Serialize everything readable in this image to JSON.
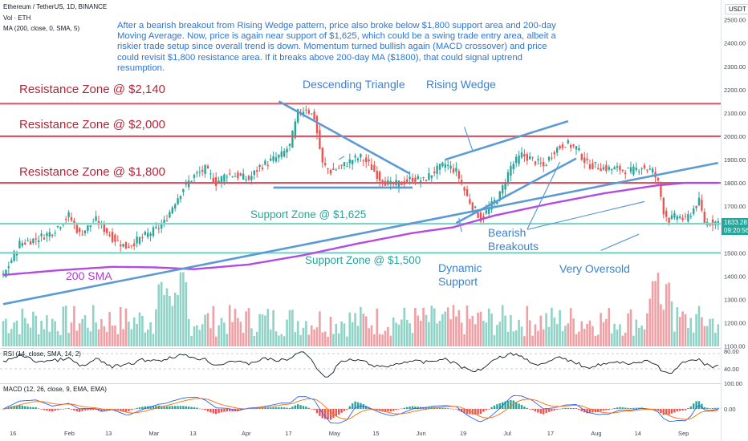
{
  "header": {
    "title": "Ethereum / TetherUS, 1D, BINANCE",
    "volume_label": "Vol · ETH",
    "ma_label": "MA (200, close, 0, SMA, 5)"
  },
  "commentary": "After a bearish breakout from Rising Wedge pattern, price also broke below $1,800 support area and 200-day Moving Average. Now, price is again near support of $1,625, which could be a swing trade entry area, albeit a riskier trade setup since overall trend is down. Momentum turned bullish again (MACD crossover) and price could revisit $1,800 resistance area. If it breaks above 200-day MA ($1800), that could signal uptrend resumption.",
  "annotations": {
    "res_2140": "Resistance Zone @ $2,140",
    "res_2000": "Resistance Zone @ $2,000",
    "res_1800": "Resistance Zone @ $1,800",
    "sup_1625": "Support Zone @ $1,625",
    "sup_1500": "Support Zone @ $1,500",
    "sma200": "200 SMA",
    "descending_triangle": "Descending Triangle",
    "rising_wedge": "Rising Wedge",
    "dynamic_support_1": "Dynamic",
    "dynamic_support_2": "Support",
    "bearish_1": "Bearish",
    "bearish_2": "Breakouts",
    "very_oversold": "Very Oversold"
  },
  "price_badge": {
    "value": "1633.28",
    "countdown": "09:20:56"
  },
  "currency": "USDT",
  "rsi_label": "RSI (14, close, SMA, 14, 2)",
  "macd_label": "MACD (12, 26, close, 9, EMA, EMA)",
  "colors": {
    "up": "#26a69a",
    "down": "#ef5350",
    "resistance": "#d65a67",
    "support": "#7fd6c6",
    "trend": "#5b9bd5",
    "sma": "#b44be1",
    "macd": "#2962ff",
    "signal": "#ff6d00",
    "text_blue": "#2f75d0"
  },
  "chart_data": {
    "type": "candlestick",
    "symbol": "ETHUSDT",
    "timeframe": "1D",
    "xticks": [
      "16",
      "Feb",
      "13",
      "Mar",
      "13",
      "Apr",
      "17",
      "May",
      "15",
      "Jun",
      "19",
      "Jul",
      "17",
      "Aug",
      "14",
      "Sep"
    ],
    "price_axis_ticks": [
      2500,
      2400,
      2300,
      2200,
      2100,
      2000,
      1900,
      1800,
      1700,
      1600,
      1500,
      1400,
      1300,
      1200,
      1100
    ],
    "price_range": [
      1100,
      2550
    ],
    "levels": {
      "resistance": [
        2140,
        2000,
        1800
      ],
      "support": [
        1625,
        1500
      ]
    },
    "last_price": 1633.28,
    "close_path": [
      [
        0,
        1400
      ],
      [
        6,
        1540
      ],
      [
        12,
        1560
      ],
      [
        18,
        1590
      ],
      [
        24,
        1660
      ],
      [
        28,
        1580
      ],
      [
        34,
        1640
      ],
      [
        40,
        1565
      ],
      [
        45,
        1525
      ],
      [
        50,
        1560
      ],
      [
        56,
        1600
      ],
      [
        59,
        1630
      ],
      [
        62,
        1700
      ],
      [
        66,
        1780
      ],
      [
        70,
        1830
      ],
      [
        74,
        1860
      ],
      [
        78,
        1800
      ],
      [
        82,
        1840
      ],
      [
        86,
        1830
      ],
      [
        90,
        1815
      ],
      [
        94,
        1870
      ],
      [
        98,
        1895
      ],
      [
        102,
        1920
      ],
      [
        105,
        1960
      ],
      [
        108,
        2100
      ],
      [
        111,
        2120
      ],
      [
        114,
        2080
      ],
      [
        117,
        1880
      ],
      [
        120,
        1850
      ],
      [
        124,
        1870
      ],
      [
        128,
        1900
      ],
      [
        131,
        1910
      ],
      [
        134,
        1880
      ],
      [
        138,
        1820
      ],
      [
        142,
        1790
      ],
      [
        146,
        1800
      ],
      [
        150,
        1820
      ],
      [
        154,
        1810
      ],
      [
        158,
        1850
      ],
      [
        162,
        1880
      ],
      [
        166,
        1850
      ],
      [
        170,
        1740
      ],
      [
        172,
        1700
      ],
      [
        175,
        1645
      ],
      [
        178,
        1690
      ],
      [
        182,
        1750
      ],
      [
        186,
        1870
      ],
      [
        190,
        1920
      ],
      [
        194,
        1900
      ],
      [
        198,
        1870
      ],
      [
        202,
        1940
      ],
      [
        206,
        1970
      ],
      [
        210,
        1950
      ],
      [
        214,
        1880
      ],
      [
        218,
        1870
      ],
      [
        222,
        1860
      ],
      [
        226,
        1860
      ],
      [
        230,
        1850
      ],
      [
        234,
        1870
      ],
      [
        238,
        1850
      ],
      [
        240,
        1800
      ],
      [
        242,
        1680
      ],
      [
        244,
        1640
      ],
      [
        247,
        1660
      ],
      [
        250,
        1640
      ],
      [
        253,
        1690
      ],
      [
        255,
        1720
      ],
      [
        257,
        1630
      ],
      [
        262,
        1633
      ]
    ],
    "volume_series": "daily ETH volume (histogram)",
    "sma200_path": [
      [
        0,
        1405
      ],
      [
        20,
        1425
      ],
      [
        40,
        1440
      ],
      [
        55,
        1438
      ],
      [
        70,
        1430
      ],
      [
        90,
        1450
      ],
      [
        110,
        1490
      ],
      [
        130,
        1540
      ],
      [
        150,
        1585
      ],
      [
        165,
        1610
      ],
      [
        180,
        1660
      ],
      [
        200,
        1710
      ],
      [
        220,
        1755
      ],
      [
        240,
        1790
      ],
      [
        250,
        1800
      ],
      [
        262,
        1800
      ]
    ],
    "rsi_axis_ticks": [
      80,
      40
    ],
    "macd_axis_ticks": [
      100,
      0
    ],
    "macd_signal": "bullish crossover (latest)"
  }
}
